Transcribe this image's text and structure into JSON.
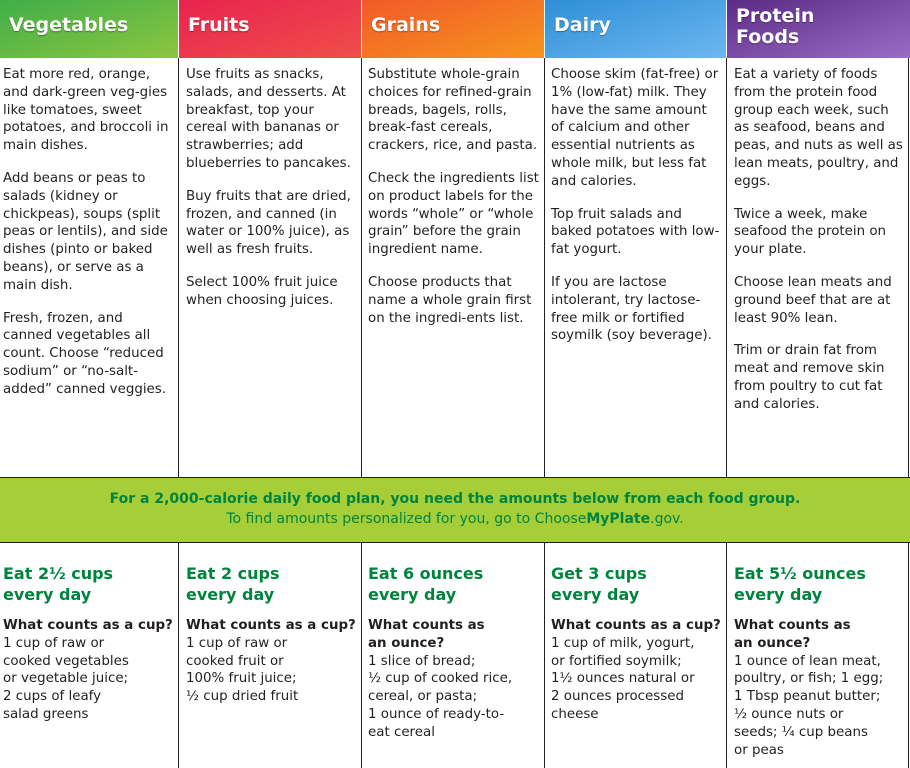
{
  "columns": [
    {
      "key": "vegetables",
      "header": [
        "Vegetables"
      ],
      "color_start": "#3fae49",
      "color_end": "#8dc63f",
      "tips": [
        "Eat more red, orange, and dark-green veg-gies like tomatoes, sweet potatoes, and broccoli in main dishes.",
        "Add beans or peas to salads (kidney or chickpeas), soups (split peas or lentils), and side dishes (pinto or baked beans), or serve as a main dish.",
        "Fresh, frozen, and canned vegetables all count. Choose “reduced sodium” or “no-salt-added” canned veggies."
      ],
      "amount": [
        "Eat 2½ cups",
        "every day"
      ],
      "question": "What counts as a cup?",
      "answer": [
        "1 cup of raw or",
        "cooked vegetables",
        "or vegetable juice;",
        "2 cups of leafy",
        "salad greens"
      ]
    },
    {
      "key": "fruits",
      "header": [
        "Fruits"
      ],
      "color_start": "#e8234f",
      "color_end": "#f04e4a",
      "tips": [
        "Use fruits as snacks, salads, and desserts. At breakfast, top your cereal with bananas or strawberries; add blueberries to pancakes.",
        "Buy fruits that are dried, frozen, and canned (in water or 100% juice), as well as fresh fruits.",
        "Select 100% fruit juice when choosing juices."
      ],
      "amount": [
        "Eat 2 cups",
        "every day"
      ],
      "question": "What counts as a cup?",
      "answer": [
        "1 cup of raw or",
        "cooked fruit or",
        "100% fruit juice;",
        "½ cup dried fruit"
      ]
    },
    {
      "key": "grains",
      "header": [
        "Grains"
      ],
      "color_start": "#f15a29",
      "color_end": "#f7941d",
      "tips": [
        "Substitute whole-grain choices for refined-grain breads, bagels, rolls, break-fast cereals, crackers, rice, and pasta.",
        "Check the ingredients list on product labels for the words “whole” or “whole grain” before the grain ingredient name.",
        "Choose products that name a whole grain first on the ingredi-ents list."
      ],
      "amount": [
        "Eat 6 ounces",
        "every day"
      ],
      "question": "What counts as\nan ounce?",
      "answer": [
        "1 slice of bread;",
        "½ cup of cooked rice,",
        "cereal, or pasta;",
        "1 ounce of ready-to-",
        "eat cereal"
      ]
    },
    {
      "key": "dairy",
      "header": [
        "Dairy"
      ],
      "color_start": "#2e8fd6",
      "color_end": "#6db7f0",
      "tips": [
        "Choose skim (fat-free) or 1% (low-fat) milk. They have the same amount of calcium and other essential nutrients as whole milk, but less fat and calories.",
        "Top fruit salads and baked potatoes with low-fat yogurt.",
        "If you are lactose intolerant, try lactose-free milk or fortified soymilk (soy beverage)."
      ],
      "amount": [
        "Get 3 cups",
        "every day"
      ],
      "question": "What counts as a cup?",
      "answer": [
        "1 cup of milk, yogurt,",
        "or fortified soymilk;",
        "1½ ounces natural or",
        "2 ounces processed",
        "cheese"
      ]
    },
    {
      "key": "protein",
      "header": [
        "Protein",
        "Foods"
      ],
      "color_start": "#5b2a86",
      "color_end": "#9b6cc6",
      "tips": [
        "Eat a variety of foods from the protein food group each week, such as seafood, beans and peas, and nuts as well as lean meats, poultry, and eggs.",
        "Twice a week, make seafood the protein on your plate.",
        "Choose lean meats and ground beef that are at least 90% lean.",
        "Trim or drain fat from meat and remove skin from poultry to cut fat and calories."
      ],
      "amount": [
        "Eat 5½ ounces",
        "every day"
      ],
      "question": "What counts as\nan ounce?",
      "answer": [
        "1 ounce of lean meat,",
        "poultry, or fish; 1 egg;",
        "1 Tbsp peanut butter;",
        "½ ounce nuts or",
        "seeds; ¼ cup beans",
        "or peas"
      ]
    }
  ],
  "banner": {
    "line1": "For a 2,000-calorie daily food plan, you need the amounts below from each food group.",
    "line2_prefix": "To find amounts personalized for you, go to Choose",
    "line2_bold": "MyPlate",
    "line2_suffix": ".gov.",
    "color_bg": "#a6ce39",
    "color_text": "#00843d"
  }
}
